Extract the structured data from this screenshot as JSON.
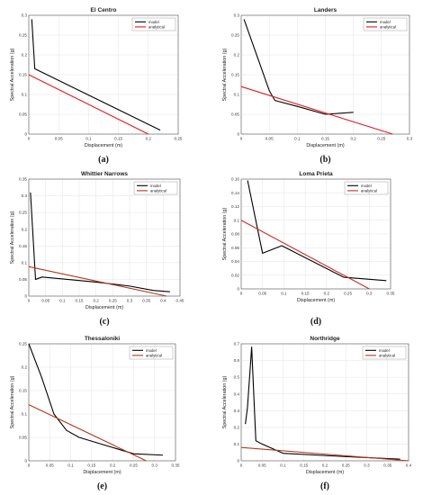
{
  "chart_data": [
    {
      "type": "line",
      "title": "El Centro",
      "caption": "(a)",
      "xlabel": "Displacement (m)",
      "ylabel": "Spectral Acceleration (g)",
      "xlim": [
        0,
        0.25
      ],
      "ylim": [
        0,
        0.3
      ],
      "xticks": [
        "0",
        "0.05",
        "0.1",
        "0.15",
        "0.2",
        "0.25"
      ],
      "yticks": [
        "0",
        "0.05",
        "0.1",
        "0.15",
        "0.2",
        "0.25",
        "0.3"
      ],
      "grid": true,
      "legend_position": "top-right",
      "series": [
        {
          "name": "model",
          "color": "#000000",
          "x": [
            0.005,
            0.01,
            0.22
          ],
          "y": [
            0.29,
            0.165,
            0.01
          ]
        },
        {
          "name": "analytical",
          "color": "#e41a1c",
          "x": [
            0,
            0.2
          ],
          "y": [
            0.15,
            0
          ]
        }
      ]
    },
    {
      "type": "line",
      "title": "Landers",
      "caption": "(b)",
      "xlabel": "Displacement (m)",
      "ylabel": "Spectral Acceleration (g)",
      "xlim": [
        0,
        0.3
      ],
      "ylim": [
        0,
        0.3
      ],
      "xticks": [
        "0",
        "0.05",
        "0.1",
        "0.15",
        "0.2",
        "0.25",
        "0.3"
      ],
      "yticks": [
        "0",
        "0.05",
        "0.1",
        "0.15",
        "0.2",
        "0.25",
        "0.3"
      ],
      "grid": true,
      "legend_position": "top-right",
      "series": [
        {
          "name": "model",
          "color": "#000000",
          "x": [
            0.005,
            0.05,
            0.06,
            0.1,
            0.15,
            0.2
          ],
          "y": [
            0.29,
            0.11,
            0.085,
            0.07,
            0.05,
            0.055
          ]
        },
        {
          "name": "analytical",
          "color": "#e41a1c",
          "x": [
            0,
            0.27
          ],
          "y": [
            0.12,
            0
          ]
        }
      ]
    },
    {
      "type": "line",
      "title": "Whittier Narrows",
      "caption": "(c)",
      "xlabel": "Displacement (m)",
      "ylabel": "Spectral Acceleration (g)",
      "xlim": [
        0,
        0.45
      ],
      "ylim": [
        0,
        0.35
      ],
      "xticks": [
        "0",
        "0.05",
        "0.1",
        "0.15",
        "0.2",
        "0.25",
        "0.3",
        "0.35",
        "0.4",
        "0.45"
      ],
      "yticks": [
        "0",
        "0.05",
        "0.1",
        "0.15",
        "0.2",
        "0.25",
        "0.3",
        "0.35"
      ],
      "grid": true,
      "legend_position": "top-right",
      "series": [
        {
          "name": "model",
          "color": "#000000",
          "x": [
            0.005,
            0.02,
            0.04,
            0.2,
            0.3,
            0.37,
            0.42
          ],
          "y": [
            0.31,
            0.05,
            0.057,
            0.042,
            0.03,
            0.017,
            0.013
          ]
        },
        {
          "name": "analytical",
          "color": "#b5361f",
          "x": [
            0,
            0.41
          ],
          "y": [
            0.088,
            0
          ]
        }
      ]
    },
    {
      "type": "line",
      "title": "Loma Prieta",
      "caption": "(d)",
      "xlabel": "Displacement (m)",
      "ylabel": "Spectral Acceleration (g)",
      "xlim": [
        0,
        0.35
      ],
      "ylim": [
        0,
        0.16
      ],
      "xticks": [
        "0",
        "0.05",
        "0.1",
        "0.15",
        "0.2",
        "0.25",
        "0.3",
        "0.35"
      ],
      "yticks": [
        "0",
        "0.02",
        "0.04",
        "0.06",
        "0.08",
        "0.1",
        "0.12",
        "0.14",
        "0.16"
      ],
      "grid": true,
      "legend_position": "top-right",
      "series": [
        {
          "name": "model",
          "color": "#000000",
          "x": [
            0.015,
            0.05,
            0.095,
            0.24,
            0.34
          ],
          "y": [
            0.158,
            0.052,
            0.063,
            0.017,
            0.012
          ]
        },
        {
          "name": "analytical",
          "color": "#cc2a2a",
          "x": [
            0,
            0.3
          ],
          "y": [
            0.1,
            0
          ]
        }
      ]
    },
    {
      "type": "line",
      "title": "Thessaloniki",
      "caption": "(e)",
      "xlabel": "Displacement (m)",
      "ylabel": "Spectral Acceleration (g)",
      "xlim": [
        0,
        0.35
      ],
      "ylim": [
        0,
        0.25
      ],
      "xticks": [
        "0",
        "0.05",
        "0.1",
        "0.15",
        "0.2",
        "0.25",
        "0.3",
        "0.35"
      ],
      "yticks": [
        "0",
        "0.05",
        "0.1",
        "0.15",
        "0.2",
        "0.25"
      ],
      "grid": true,
      "legend_position": "top-right",
      "series": [
        {
          "name": "model",
          "color": "#000000",
          "x": [
            0,
            0.03,
            0.06,
            0.09,
            0.12,
            0.25,
            0.32
          ],
          "y": [
            0.25,
            0.18,
            0.1,
            0.065,
            0.05,
            0.015,
            0.012
          ]
        },
        {
          "name": "analytical",
          "color": "#b5361f",
          "x": [
            0,
            0.28
          ],
          "y": [
            0.12,
            0
          ]
        }
      ]
    },
    {
      "type": "line",
      "title": "Northridge",
      "caption": "(f)",
      "xlabel": "Displacement (m)",
      "ylabel": "Spectral Acceleration (g)",
      "xlim": [
        0,
        0.4
      ],
      "ylim": [
        0,
        0.7
      ],
      "xticks": [
        "0",
        "0.05",
        "0.1",
        "0.15",
        "0.2",
        "0.25",
        "0.3",
        "0.35",
        "0.4"
      ],
      "yticks": [
        "0",
        "0.1",
        "0.2",
        "0.3",
        "0.4",
        "0.5",
        "0.6",
        "0.7"
      ],
      "grid": true,
      "legend_position": "top-right",
      "series": [
        {
          "name": "model",
          "color": "#000000",
          "x": [
            0.01,
            0.015,
            0.025,
            0.035,
            0.05,
            0.1,
            0.25,
            0.38
          ],
          "y": [
            0.22,
            0.32,
            0.68,
            0.12,
            0.1,
            0.045,
            0.025,
            0.01
          ]
        },
        {
          "name": "analytical",
          "color": "#b5361f",
          "x": [
            0,
            0.4
          ],
          "y": [
            0.08,
            0
          ]
        }
      ]
    }
  ]
}
